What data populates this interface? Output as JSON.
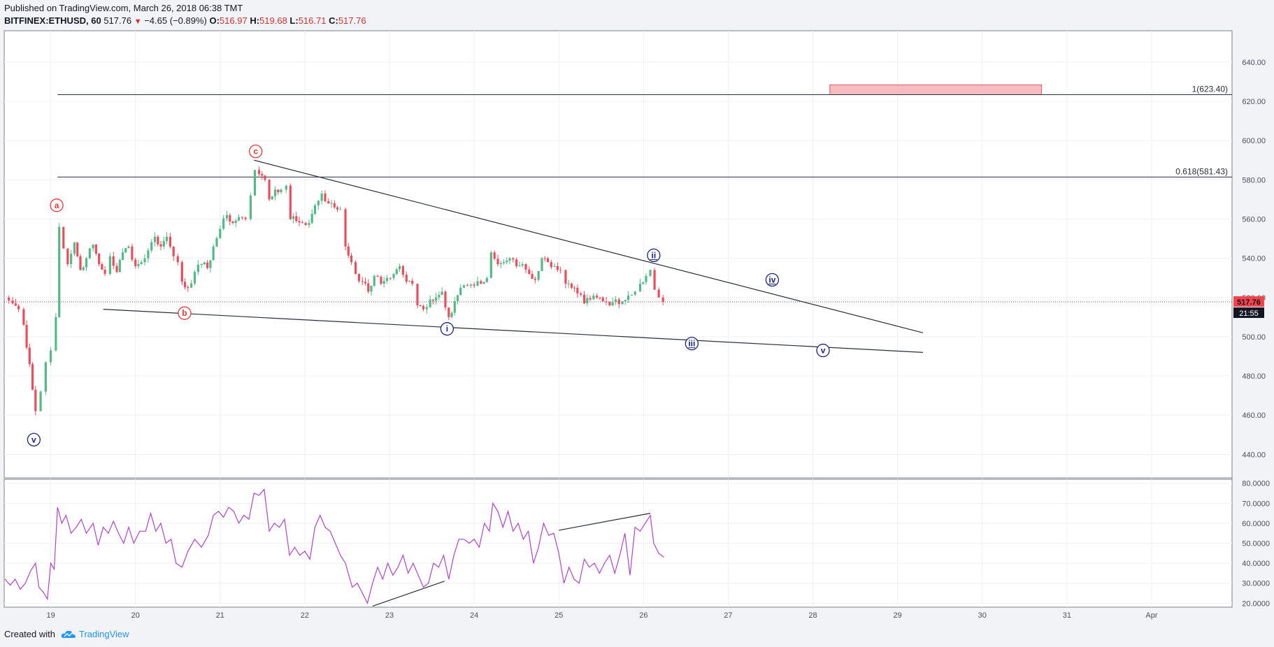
{
  "header": {
    "published": "Published on TradingView.com, March 26, 2018 06:38 TMT",
    "symbol": "BITFINEX:ETHUSD, 60",
    "last": "517.76",
    "change": "−4.65 (−0.89%)",
    "open_label": "O:",
    "open": "516.97",
    "high_label": "H:",
    "high": "519.68",
    "low_label": "L:",
    "low": "516.71",
    "close_label": "C:",
    "close": "517.76"
  },
  "footer": {
    "created_with": "Created with",
    "brand": "TradingView"
  },
  "colors": {
    "up": "#53b987",
    "down": "#eb4d5c",
    "rsi": "#b044c8",
    "wave_red": "#e53935",
    "wave_blue": "#1a237e",
    "target_box": "#f8bbbf"
  },
  "chart_data": [
    {
      "type": "candlestick",
      "pane": "price",
      "ylim": [
        428,
        656
      ],
      "y_ticks": [
        440,
        460,
        480,
        500,
        520,
        540,
        560,
        580,
        600,
        620,
        640
      ],
      "y_tick_labels": [
        "440.00",
        "460.00",
        "480.00",
        "500.00",
        "520.00",
        "540.00",
        "560.00",
        "580.00",
        "600.00",
        "620.00",
        "640.00"
      ],
      "x_unit": "day (March 2018; 32 = Apr 1)",
      "xlim": [
        18.45,
        32.95
      ],
      "x_ticks": [
        19,
        20,
        21,
        22,
        23,
        24,
        25,
        26,
        27,
        28,
        29,
        30,
        31,
        32
      ],
      "x_tick_labels": [
        "19",
        "20",
        "21",
        "22",
        "23",
        "24",
        "25",
        "26",
        "27",
        "28",
        "29",
        "30",
        "31",
        "Apr"
      ],
      "last_price_label": "517.76",
      "countdown_label": "21:55",
      "close_path": [
        [
          18.46,
          520
        ],
        [
          18.55,
          517
        ],
        [
          18.62,
          514
        ],
        [
          18.68,
          506
        ],
        [
          18.75,
          486
        ],
        [
          18.82,
          462
        ],
        [
          18.88,
          472
        ],
        [
          18.94,
          487
        ],
        [
          19.0,
          493
        ],
        [
          19.06,
          510
        ],
        [
          19.1,
          556
        ],
        [
          19.15,
          545
        ],
        [
          19.2,
          537
        ],
        [
          19.28,
          548
        ],
        [
          19.35,
          534
        ],
        [
          19.42,
          540
        ],
        [
          19.5,
          547
        ],
        [
          19.57,
          537
        ],
        [
          19.64,
          532
        ],
        [
          19.7,
          541
        ],
        [
          19.78,
          533
        ],
        [
          19.85,
          543
        ],
        [
          19.92,
          546
        ],
        [
          20.0,
          536
        ],
        [
          20.07,
          538
        ],
        [
          20.15,
          544
        ],
        [
          20.23,
          551
        ],
        [
          20.3,
          546
        ],
        [
          20.37,
          551
        ],
        [
          20.45,
          541
        ],
        [
          20.5,
          538
        ],
        [
          20.55,
          528
        ],
        [
          20.62,
          525
        ],
        [
          20.7,
          533
        ],
        [
          20.78,
          537
        ],
        [
          20.85,
          535
        ],
        [
          20.92,
          546
        ],
        [
          21.0,
          555
        ],
        [
          21.08,
          562
        ],
        [
          21.15,
          558
        ],
        [
          21.22,
          561
        ],
        [
          21.3,
          560
        ],
        [
          21.36,
          572
        ],
        [
          21.41,
          585
        ],
        [
          21.46,
          583
        ],
        [
          21.53,
          580
        ],
        [
          21.58,
          570
        ],
        [
          21.65,
          575
        ],
        [
          21.72,
          575
        ],
        [
          21.78,
          577
        ],
        [
          21.83,
          560
        ],
        [
          21.9,
          559
        ],
        [
          21.97,
          558
        ],
        [
          22.05,
          558
        ],
        [
          22.12,
          567
        ],
        [
          22.2,
          573
        ],
        [
          22.28,
          568
        ],
        [
          22.35,
          566
        ],
        [
          22.42,
          565
        ],
        [
          22.48,
          546
        ],
        [
          22.55,
          538
        ],
        [
          22.6,
          532
        ],
        [
          22.68,
          528
        ],
        [
          22.75,
          523
        ],
        [
          22.82,
          531
        ],
        [
          22.9,
          527
        ],
        [
          22.97,
          530
        ],
        [
          23.05,
          532
        ],
        [
          23.12,
          536
        ],
        [
          23.2,
          528
        ],
        [
          23.27,
          527
        ],
        [
          23.33,
          516
        ],
        [
          23.4,
          514
        ],
        [
          23.48,
          519
        ],
        [
          23.55,
          520
        ],
        [
          23.62,
          523
        ],
        [
          23.7,
          510
        ],
        [
          23.77,
          518
        ],
        [
          23.84,
          525
        ],
        [
          23.92,
          526
        ],
        [
          24.0,
          526
        ],
        [
          24.08,
          527
        ],
        [
          24.15,
          530
        ],
        [
          24.2,
          543
        ],
        [
          24.28,
          537
        ],
        [
          24.35,
          538
        ],
        [
          24.42,
          540
        ],
        [
          24.5,
          536
        ],
        [
          24.57,
          537
        ],
        [
          24.65,
          532
        ],
        [
          24.72,
          529
        ],
        [
          24.8,
          540
        ],
        [
          24.87,
          538
        ],
        [
          24.95,
          536
        ],
        [
          25.02,
          534
        ],
        [
          25.08,
          527
        ],
        [
          25.15,
          525
        ],
        [
          25.22,
          522
        ],
        [
          25.3,
          517
        ],
        [
          25.37,
          519
        ],
        [
          25.45,
          520
        ],
        [
          25.52,
          518
        ],
        [
          25.6,
          516
        ],
        [
          25.67,
          519
        ],
        [
          25.75,
          518
        ],
        [
          25.82,
          521
        ],
        [
          25.9,
          523
        ],
        [
          25.96,
          527
        ],
        [
          26.03,
          531
        ],
        [
          26.08,
          534
        ],
        [
          26.13,
          524
        ],
        [
          26.18,
          520
        ],
        [
          26.23,
          517.76
        ]
      ]
    },
    {
      "type": "line",
      "pane": "rsi",
      "series_color": "#b044c8",
      "ylim": [
        18,
        82
      ],
      "y_ticks": [
        20,
        30,
        40,
        50,
        60,
        70,
        80
      ],
      "y_tick_labels": [
        "20.0000",
        "30.0000",
        "40.0000",
        "50.0000",
        "60.0000",
        "70.0000",
        "80.0000"
      ],
      "points": [
        [
          18.46,
          32
        ],
        [
          18.52,
          29
        ],
        [
          18.58,
          32
        ],
        [
          18.64,
          27
        ],
        [
          18.7,
          30
        ],
        [
          18.76,
          36
        ],
        [
          18.82,
          40
        ],
        [
          18.86,
          28
        ],
        [
          18.92,
          25
        ],
        [
          18.96,
          22
        ],
        [
          19.0,
          40
        ],
        [
          19.04,
          37
        ],
        [
          19.08,
          68
        ],
        [
          19.13,
          60
        ],
        [
          19.18,
          64
        ],
        [
          19.24,
          55
        ],
        [
          19.3,
          58
        ],
        [
          19.36,
          62
        ],
        [
          19.42,
          55
        ],
        [
          19.5,
          60
        ],
        [
          19.56,
          49
        ],
        [
          19.62,
          58
        ],
        [
          19.68,
          55
        ],
        [
          19.74,
          61
        ],
        [
          19.8,
          55
        ],
        [
          19.86,
          50
        ],
        [
          19.92,
          58
        ],
        [
          19.98,
          50
        ],
        [
          20.05,
          56
        ],
        [
          20.12,
          56
        ],
        [
          20.18,
          65
        ],
        [
          20.24,
          56
        ],
        [
          20.3,
          60
        ],
        [
          20.36,
          50
        ],
        [
          20.42,
          52
        ],
        [
          20.48,
          40
        ],
        [
          20.55,
          38
        ],
        [
          20.62,
          46
        ],
        [
          20.7,
          52
        ],
        [
          20.78,
          48
        ],
        [
          20.86,
          54
        ],
        [
          20.92,
          64
        ],
        [
          20.98,
          66
        ],
        [
          21.04,
          63
        ],
        [
          21.1,
          68
        ],
        [
          21.16,
          66
        ],
        [
          21.22,
          60
        ],
        [
          21.28,
          64
        ],
        [
          21.34,
          62
        ],
        [
          21.4,
          75
        ],
        [
          21.46,
          74
        ],
        [
          21.52,
          77
        ],
        [
          21.58,
          56
        ],
        [
          21.64,
          60
        ],
        [
          21.7,
          58
        ],
        [
          21.76,
          62
        ],
        [
          21.82,
          44
        ],
        [
          21.88,
          48
        ],
        [
          21.94,
          44
        ],
        [
          22.0,
          46
        ],
        [
          22.06,
          42
        ],
        [
          22.12,
          58
        ],
        [
          22.18,
          64
        ],
        [
          22.24,
          58
        ],
        [
          22.3,
          56
        ],
        [
          22.36,
          50
        ],
        [
          22.42,
          44
        ],
        [
          22.48,
          40
        ],
        [
          22.56,
          28
        ],
        [
          22.62,
          30
        ],
        [
          22.68,
          25
        ],
        [
          22.74,
          20
        ],
        [
          22.8,
          30
        ],
        [
          22.86,
          38
        ],
        [
          22.92,
          32
        ],
        [
          22.98,
          40
        ],
        [
          23.04,
          34
        ],
        [
          23.1,
          38
        ],
        [
          23.16,
          44
        ],
        [
          23.22,
          35
        ],
        [
          23.28,
          40
        ],
        [
          23.34,
          34
        ],
        [
          23.4,
          28
        ],
        [
          23.46,
          30
        ],
        [
          23.52,
          40
        ],
        [
          23.58,
          38
        ],
        [
          23.64,
          44
        ],
        [
          23.7,
          32
        ],
        [
          23.76,
          44
        ],
        [
          23.82,
          52
        ],
        [
          23.88,
          52
        ],
        [
          23.94,
          50
        ],
        [
          24.0,
          52
        ],
        [
          24.06,
          48
        ],
        [
          24.12,
          60
        ],
        [
          24.18,
          56
        ],
        [
          24.22,
          70
        ],
        [
          24.28,
          66
        ],
        [
          24.34,
          58
        ],
        [
          24.4,
          66
        ],
        [
          24.46,
          56
        ],
        [
          24.52,
          60
        ],
        [
          24.58,
          52
        ],
        [
          24.64,
          56
        ],
        [
          24.7,
          40
        ],
        [
          24.76,
          48
        ],
        [
          24.82,
          60
        ],
        [
          24.88,
          54
        ],
        [
          24.94,
          55
        ],
        [
          25.0,
          45
        ],
        [
          25.06,
          30
        ],
        [
          25.12,
          38
        ],
        [
          25.18,
          32
        ],
        [
          25.24,
          30
        ],
        [
          25.3,
          42
        ],
        [
          25.36,
          38
        ],
        [
          25.42,
          40
        ],
        [
          25.48,
          35
        ],
        [
          25.54,
          40
        ],
        [
          25.6,
          44
        ],
        [
          25.66,
          35
        ],
        [
          25.72,
          44
        ],
        [
          25.78,
          55
        ],
        [
          25.84,
          34
        ],
        [
          25.9,
          58
        ],
        [
          25.96,
          56
        ],
        [
          26.02,
          60
        ],
        [
          26.08,
          64
        ],
        [
          26.12,
          50
        ],
        [
          26.18,
          45
        ],
        [
          26.24,
          43
        ]
      ],
      "trendlines": [
        [
          [
            22.8,
            18.5
          ],
          [
            23.65,
            31.0
          ]
        ],
        [
          [
            25.0,
            56.5
          ],
          [
            26.08,
            65.0
          ]
        ]
      ]
    }
  ],
  "annotations": {
    "fib_levels": [
      {
        "label": "1(623.40)",
        "price": 623.4,
        "x_start": 19.08
      },
      {
        "label": "0.618(581.43)",
        "price": 581.43,
        "x_start": 19.08
      }
    ],
    "target_zone": {
      "x_from": 28.2,
      "x_to": 30.7,
      "price_from": 623.4,
      "price_to": 628.4
    },
    "triangle_lines": [
      [
        [
          21.4,
          590.0
        ],
        [
          29.3,
          502.0
        ]
      ],
      [
        [
          19.62,
          514.0
        ],
        [
          29.3,
          492.0
        ]
      ]
    ],
    "wave_labels": [
      {
        "text": "v",
        "x": 18.8,
        "price": 447.5,
        "color": "blue",
        "double": false
      },
      {
        "text": "a",
        "x": 19.07,
        "price": 567.0,
        "color": "red",
        "double": false
      },
      {
        "text": "b",
        "x": 20.58,
        "price": 512.0,
        "color": "red",
        "double": false
      },
      {
        "text": "c",
        "x": 21.42,
        "price": 594.5,
        "color": "red",
        "double": false
      },
      {
        "text": "i",
        "x": 23.68,
        "price": 504.0,
        "color": "blue",
        "double": false
      },
      {
        "text": "ii",
        "x": 26.12,
        "price": 541.5,
        "color": "blue",
        "double": true
      },
      {
        "text": "iii",
        "x": 26.57,
        "price": 496.5,
        "color": "blue",
        "double": true
      },
      {
        "text": "iv",
        "x": 27.52,
        "price": 529.0,
        "color": "blue",
        "double": true
      },
      {
        "text": "v",
        "x": 28.12,
        "price": 493.0,
        "color": "blue",
        "double": false
      }
    ]
  }
}
